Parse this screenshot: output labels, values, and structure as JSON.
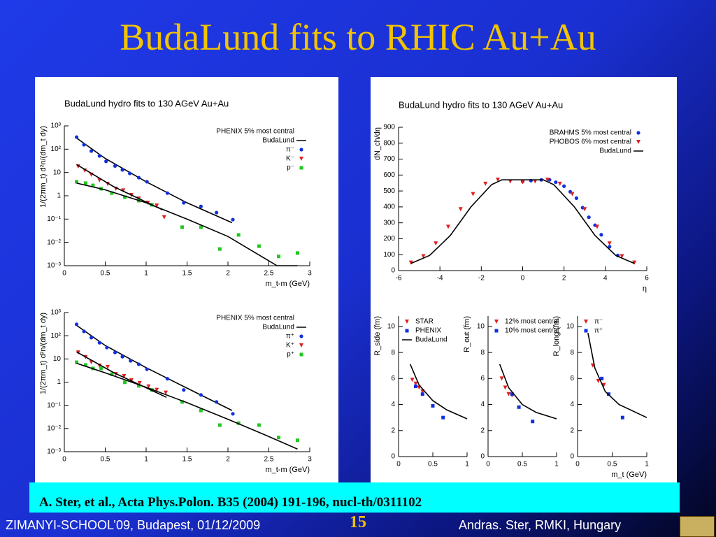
{
  "slide": {
    "title": "BudaLund fits to RHIC Au+Au",
    "citation": "A. Ster, et al., Acta Phys.Polon. B35 (2004) 191-196, nucl-th/0311102",
    "footer_left": "ZIMANYI-SCHOOL’09, Budapest, 01/12/2009",
    "page_number": 15,
    "footer_right": "Andras. Ster,  RMKI, Hungary"
  },
  "chart_data": [
    {
      "type": "scatter",
      "title": "BudaLund hydro fits to 130 AGeV Au+Au",
      "x_label": "m_t-m (GeV)",
      "y_label": "1/(2πm_t) d²n/(dm_t dy)",
      "log_y": true,
      "xlim": [
        0,
        3
      ],
      "xticks": [
        0,
        0.5,
        1,
        1.5,
        2,
        2.5,
        3
      ],
      "ylim": [
        0.001,
        1000
      ],
      "yticks": [
        {
          "value": 1000,
          "label": "10³"
        },
        {
          "value": 100,
          "label": "10²"
        },
        10,
        1,
        {
          "value": 0.1,
          "label": "10⁻¹"
        },
        {
          "value": 0.01,
          "label": "10⁻²"
        },
        {
          "value": 0.001,
          "label": "10⁻³"
        }
      ],
      "legend": "upper right",
      "legend_title": "PHENIX 5% most central",
      "series": [
        {
          "name": "BudaLund",
          "color": "#000000",
          "marker": "none",
          "x": [
            0.15,
            0.5,
            1,
            1.5,
            2.05
          ],
          "values": [
            300,
            40,
            4,
            0.5,
            0.07
          ]
        },
        {
          "name": "π⁻",
          "color": "#1030e0",
          "marker": "circle",
          "x": [
            0.15,
            0.24,
            0.33,
            0.43,
            0.51,
            0.62,
            0.71,
            0.8,
            0.91,
            1.01,
            1.26,
            1.46,
            1.67,
            1.86,
            2.06
          ],
          "values": [
            330,
            155,
            83,
            51,
            30,
            19,
            13,
            9.1,
            6.0,
            4.0,
            1.3,
            0.5,
            0.35,
            0.19,
            0.095
          ]
        },
        {
          "name": "K⁻",
          "color": "#e02020",
          "marker": "triangle",
          "x": [
            0.17,
            0.25,
            0.33,
            0.43,
            0.53,
            0.63,
            0.72,
            0.82,
            0.91,
            1.02,
            1.13,
            1.22
          ],
          "values": [
            18,
            12,
            8,
            4.6,
            3.2,
            2.0,
            1.7,
            1.07,
            0.76,
            0.5,
            0.38,
            0.12
          ]
        },
        {
          "name": "p⁻",
          "color": "#20c820",
          "marker": "square",
          "x": [
            0.15,
            0.26,
            0.35,
            0.45,
            0.58,
            0.74,
            0.91,
            1.07,
            1.44,
            1.67,
            1.9,
            2.13,
            2.38,
            2.62,
            2.85
          ],
          "values": [
            4.0,
            3.5,
            2.8,
            2.0,
            1.3,
            0.87,
            0.62,
            0.41,
            0.045,
            0.045,
            0.0052,
            0.021,
            0.0069,
            0.0025,
            0.0035
          ]
        },
        {
          "color": "#000000",
          "marker": "none",
          "x": [
            0.15,
            0.6,
            1.2
          ],
          "values": [
            22,
            2.5,
            0.25
          ]
        },
        {
          "color": "#000000",
          "marker": "none",
          "x": [
            0.15,
            0.5,
            1,
            1.5,
            2,
            2.6,
            2.85
          ],
          "values": [
            3.5,
            1.8,
            0.5,
            0.1,
            0.018,
            0.001,
            0.001
          ]
        }
      ]
    },
    {
      "type": "scatter",
      "x_label": "m_t-m (GeV)",
      "y_label": "1/(2πm_t) d²n/(dm_t dy)",
      "log_y": true,
      "xlim": [
        0,
        3
      ],
      "xticks": [
        0,
        0.5,
        1,
        1.5,
        2,
        2.5,
        3
      ],
      "ylim": [
        0.001,
        1000
      ],
      "yticks": [
        {
          "value": 1000,
          "label": "10³"
        },
        {
          "value": 100,
          "label": "10²"
        },
        10,
        1,
        {
          "value": 0.1,
          "label": "10⁻¹"
        },
        {
          "value": 0.01,
          "label": "10⁻²"
        },
        {
          "value": 0.001,
          "label": "10⁻³"
        }
      ],
      "legend": "upper right",
      "legend_title": "PHENIX 5% most central",
      "series": [
        {
          "name": "BudaLund",
          "color": "#000000",
          "marker": "none",
          "x": [
            0.15,
            0.5,
            1,
            1.5,
            2.05
          ],
          "values": [
            280,
            38,
            4.2,
            0.55,
            0.06
          ]
        },
        {
          "name": "π⁺",
          "color": "#1030e0",
          "marker": "circle",
          "x": [
            0.15,
            0.24,
            0.33,
            0.43,
            0.52,
            0.62,
            0.71,
            0.81,
            0.91,
            1.01,
            1.26,
            1.46,
            1.67,
            1.86,
            2.06
          ],
          "values": [
            310,
            155,
            83,
            50,
            31,
            19,
            12.5,
            8.3,
            5.9,
            3.6,
            1.4,
            0.46,
            0.28,
            0.14,
            0.043
          ]
        },
        {
          "name": "K⁺",
          "color": "#e02020",
          "marker": "triangle",
          "x": [
            0.17,
            0.26,
            0.33,
            0.43,
            0.53,
            0.63,
            0.73,
            0.82,
            0.92,
            1.03,
            1.13,
            1.24
          ],
          "values": [
            19,
            12,
            7.2,
            5.1,
            4.5,
            2.2,
            1.8,
            1.2,
            0.91,
            0.65,
            0.46,
            0.35
          ]
        },
        {
          "name": "p⁺",
          "color": "#20c820",
          "marker": "square",
          "x": [
            0.15,
            0.26,
            0.35,
            0.45,
            0.58,
            0.74,
            0.91,
            1.07,
            1.44,
            1.67,
            1.9,
            2.13,
            2.38,
            2.62,
            2.85
          ],
          "values": [
            7.2,
            5.5,
            3.9,
            3.9,
            2.2,
            0.98,
            0.69,
            0.46,
            0.14,
            0.06,
            0.014,
            0.017,
            0.014,
            0.0041,
            0.0031
          ]
        },
        {
          "color": "#000000",
          "marker": "none",
          "x": [
            0.15,
            0.6,
            1.25
          ],
          "values": [
            20,
            2.6,
            0.22
          ]
        },
        {
          "color": "#000000",
          "marker": "none",
          "x": [
            0.15,
            0.5,
            1,
            1.5,
            2,
            2.5,
            2.85
          ],
          "values": [
            6.5,
            2.5,
            0.6,
            0.13,
            0.025,
            0.0045,
            0.0013
          ]
        }
      ]
    },
    {
      "type": "scatter",
      "title": "BudaLund hydro fits to 130 AGeV Au+Au",
      "x_label": "η",
      "y_label": "dN_ch/dη",
      "xlim": [
        -6,
        6
      ],
      "xticks": [
        -6,
        -4,
        -2,
        0,
        2,
        4,
        6
      ],
      "ylim": [
        0,
        900
      ],
      "yticks": [
        0,
        100,
        200,
        300,
        400,
        500,
        600,
        700,
        800,
        900
      ],
      "legend": "upper right",
      "legend_text_colored": true,
      "series": [
        {
          "name": "BRAHMS 5% most central",
          "color": "#1030e0",
          "marker": "circle",
          "x": [
            0,
            0.4,
            0.9,
            1.3,
            1.6,
            2.0,
            2.3,
            2.6,
            2.9,
            3.2,
            3.5,
            3.8,
            4.2,
            4.6
          ],
          "values": [
            560,
            565,
            570,
            570,
            555,
            530,
            495,
            455,
            395,
            335,
            285,
            225,
            150,
            95
          ]
        },
        {
          "name": "PHOBOS 6% most central",
          "color": "#e02020",
          "marker": "triangle",
          "x": [
            -5.4,
            -4.8,
            -4.2,
            -3.6,
            -3.0,
            -2.4,
            -1.8,
            -1.2,
            -0.6,
            0,
            0.6,
            1.2,
            1.8,
            2.4,
            3.0,
            3.6,
            4.2,
            4.8,
            5.4
          ],
          "values": [
            50,
            90,
            170,
            275,
            385,
            480,
            545,
            570,
            560,
            555,
            560,
            570,
            545,
            480,
            385,
            275,
            170,
            90,
            50
          ]
        },
        {
          "name": "BudaLund",
          "color": "#000000",
          "marker": "none",
          "x": [
            -5.4,
            -4.5,
            -3.5,
            -2.5,
            -1.5,
            -1,
            0,
            1,
            1.5,
            2.5,
            3.5,
            4.5,
            5.4
          ],
          "values": [
            45,
            95,
            220,
            400,
            540,
            570,
            570,
            570,
            540,
            400,
            220,
            95,
            45
          ]
        }
      ]
    },
    {
      "type": "scatter",
      "y_label": "R_side (fm)",
      "xlim": [
        0,
        1
      ],
      "xticks": [
        0,
        0.5,
        1
      ],
      "ylim": [
        0,
        10.8
      ],
      "yticks": [
        0,
        2,
        4,
        6,
        8,
        10
      ],
      "legend": "upper left",
      "series": [
        {
          "name": "STAR",
          "color": "#e02020",
          "marker": "triangle",
          "x": [
            0.2,
            0.25,
            0.3,
            0.35
          ],
          "values": [
            5.9,
            5.6,
            5.3,
            5.0
          ]
        },
        {
          "name": "PHENIX",
          "color": "#1030e0",
          "marker": "square",
          "x": [
            0.25,
            0.35,
            0.5,
            0.65
          ],
          "values": [
            5.4,
            4.8,
            3.9,
            3.0
          ]
        },
        {
          "name": "BudaLund",
          "color": "#000000",
          "marker": "none",
          "x": [
            0.17,
            0.3,
            0.5,
            0.7,
            1
          ],
          "values": [
            7.1,
            5.5,
            4.3,
            3.6,
            2.9
          ]
        }
      ]
    },
    {
      "type": "scatter",
      "y_label": "R_out (fm)",
      "xlim": [
        0,
        1
      ],
      "xticks": [
        0,
        0.5,
        1
      ],
      "ylim": [
        0,
        10.8
      ],
      "yticks": [
        0,
        2,
        4,
        6,
        8,
        10
      ],
      "legend": "upper left",
      "legend_text_colored": true,
      "series": [
        {
          "name": "12% most central",
          "color": "#e02020",
          "marker": "triangle",
          "x": [
            0.2,
            0.25,
            0.3,
            0.35
          ],
          "values": [
            6.0,
            5.3,
            4.8,
            4.7
          ]
        },
        {
          "name": "10% most central",
          "color": "#1030e0",
          "marker": "square",
          "x": [
            0.35,
            0.45,
            0.65
          ],
          "values": [
            4.8,
            3.8,
            2.7
          ]
        },
        {
          "color": "#000000",
          "marker": "none",
          "x": [
            0.17,
            0.3,
            0.5,
            0.7,
            1
          ],
          "values": [
            7.1,
            5.3,
            4.0,
            3.4,
            2.9
          ]
        }
      ]
    },
    {
      "type": "scatter",
      "y_label": "R_long (fm)",
      "x_label": "m_t (GeV)",
      "xlim": [
        0,
        1
      ],
      "xticks": [
        0,
        0.5,
        1
      ],
      "ylim": [
        0,
        10.8
      ],
      "yticks": [
        0,
        2,
        4,
        6,
        8,
        10
      ],
      "legend": "upper left",
      "series": [
        {
          "name": "π⁻",
          "color": "#e02020",
          "marker": "triangle",
          "x": [
            0.22,
            0.3,
            0.38
          ],
          "values": [
            7.0,
            5.8,
            5.5
          ]
        },
        {
          "name": "π⁺",
          "color": "#1030e0",
          "marker": "square",
          "x": [
            0.35,
            0.45,
            0.65
          ],
          "values": [
            6.0,
            4.8,
            3.0
          ]
        },
        {
          "color": "#000000",
          "marker": "none",
          "x": [
            0.15,
            0.25,
            0.4,
            0.6,
            1
          ],
          "values": [
            9.5,
            6.8,
            5.0,
            4.0,
            3.0
          ]
        }
      ]
    }
  ]
}
